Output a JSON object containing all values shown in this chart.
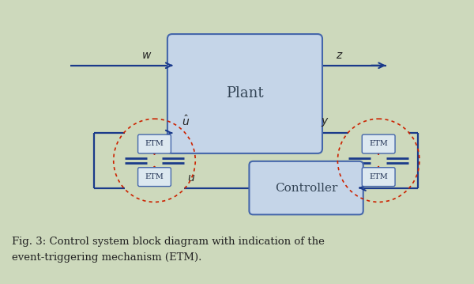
{
  "bg_color": "#cdd9bc",
  "plant_facecolor": "#c5d5e8",
  "plant_edgecolor": "#4466aa",
  "ctrl_facecolor": "#c5d5e8",
  "ctrl_edgecolor": "#4466aa",
  "etm_box_facecolor": "#dce8f0",
  "etm_box_edgecolor": "#4466aa",
  "arrow_color": "#1a3a8a",
  "red_color": "#cc2200",
  "ellipse_color": "#cc2200",
  "caption_line1": "Fig. 3: Control system block diagram with indication of the",
  "caption_line2": "event-triggering mechanism (ETM)."
}
